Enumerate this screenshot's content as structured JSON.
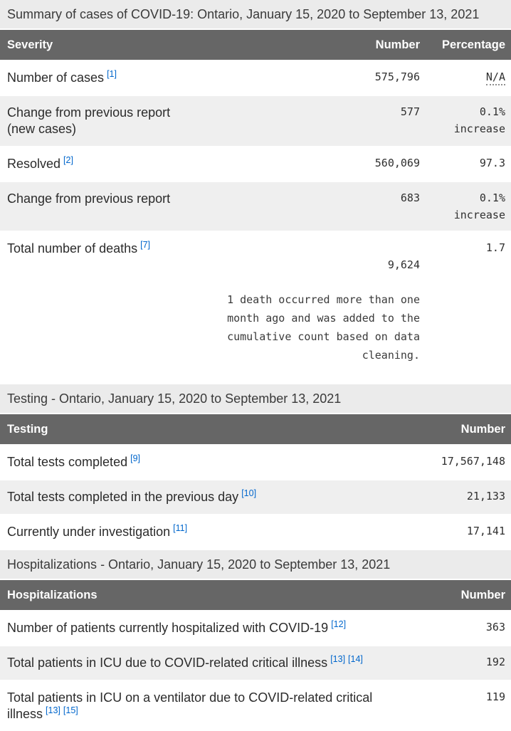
{
  "colors": {
    "header_bg": "#666666",
    "caption_bg": "#ebebeb",
    "row_alt_bg": "#efefef",
    "link_blue": "#0066cc",
    "header_text": "#ffffff"
  },
  "summary": {
    "caption": "Summary of cases of COVID-19: Ontario, January 15, 2020 to September 13, 2021",
    "headers": {
      "severity": "Severity",
      "number": "Number",
      "percentage": "Percentage"
    },
    "rows": [
      {
        "label": "Number of cases",
        "refs": [
          "[1]"
        ],
        "number": "575,796",
        "percentage": "N/A"
      },
      {
        "label": "Change from previous report\n(new cases)",
        "number": "577",
        "percentage": "0.1%\nincrease"
      },
      {
        "label": "Resolved",
        "refs": [
          "[2]"
        ],
        "number": "560,069",
        "percentage": "97.3"
      },
      {
        "label": "Change from previous report",
        "number": "683",
        "percentage": "0.1%\nincrease"
      },
      {
        "label": "Total number of deaths",
        "refs": [
          "[7]"
        ],
        "number": "9,624",
        "note": "1 death occurred more than one\nmonth ago and was added to the\ncumulative count based on data\ncleaning.",
        "percentage": "1.7"
      }
    ]
  },
  "testing": {
    "caption": "Testing - Ontario, January 15, 2020 to September 13, 2021",
    "headers": {
      "testing": "Testing",
      "number": "Number"
    },
    "rows": [
      {
        "label": "Total tests completed",
        "refs": [
          "[9]"
        ],
        "number": "17,567,148"
      },
      {
        "label": "Total tests completed in the previous day",
        "refs": [
          "[10]"
        ],
        "number": "21,133"
      },
      {
        "label": "Currently under investigation",
        "refs": [
          "[11]"
        ],
        "number": "17,141"
      }
    ]
  },
  "hospitalizations": {
    "caption": "Hospitalizations - Ontario, January 15, 2020 to September 13, 2021",
    "headers": {
      "hospitalizations": "Hospitalizations",
      "number": "Number"
    },
    "rows": [
      {
        "label": "Number of patients currently hospitalized with COVID-19",
        "refs": [
          "[12]"
        ],
        "number": "363"
      },
      {
        "label": "Total patients in ICU due to COVID-related critical illness",
        "refs": [
          "[13]",
          "[14]"
        ],
        "number": "192"
      },
      {
        "label": "Total patients in ICU on a ventilator due to COVID-related critical illness",
        "refs": [
          "[13]",
          "[15]"
        ],
        "number": "119"
      }
    ]
  }
}
